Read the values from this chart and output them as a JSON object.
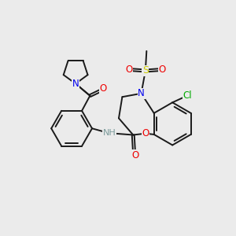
{
  "bg_color": "#ebebeb",
  "figsize": [
    3.0,
    3.0
  ],
  "dpi": 100,
  "atom_colors": {
    "C": "#1a1a1a",
    "N": "#0000ee",
    "O": "#ee0000",
    "S": "#cccc00",
    "Cl": "#00aa00",
    "H": "#7a9a9a"
  },
  "bond_color": "#1a1a1a",
  "bond_width": 1.4
}
